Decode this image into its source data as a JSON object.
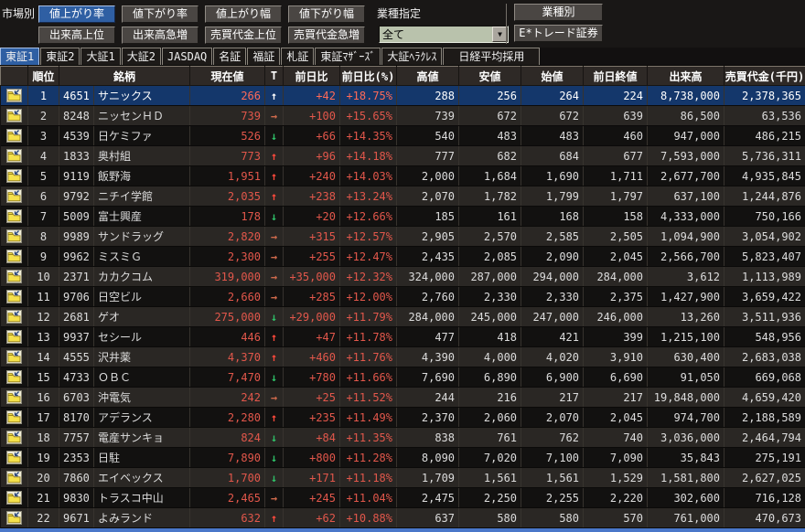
{
  "colors": {
    "selected_button_bg": "#2f5fa3",
    "selected_row_bg": "#14376b",
    "price_text": "#e2574b",
    "arrow_up": "#ff4a3c",
    "arrow_down": "#2fc269",
    "arrow_flat": "#cf6a4c",
    "dropdown_bg": "#b9c2ac",
    "bottom_line": "#4a77c9"
  },
  "toolbar": {
    "market_label": "市場別",
    "industry_label": "業種指定",
    "row1_buttons": [
      {
        "label": "値上がり率",
        "selected": true
      },
      {
        "label": "値下がり率",
        "selected": false
      },
      {
        "label": "値上がり幅",
        "selected": false
      },
      {
        "label": "値下がり幅",
        "selected": false
      }
    ],
    "row2_buttons": [
      {
        "label": "出来高上位",
        "selected": false
      },
      {
        "label": "出来高急増",
        "selected": false
      },
      {
        "label": "売買代金上位",
        "selected": false
      },
      {
        "label": "売買代金急増",
        "selected": false
      }
    ],
    "industry_select_value": "全て",
    "dropdown_arrow": "▼",
    "industry_detail_button": "業種別",
    "broker_button": "E*トレード証券"
  },
  "tabs": [
    {
      "label": "東証1",
      "selected": true
    },
    {
      "label": "東証2",
      "selected": false
    },
    {
      "label": "大証1",
      "selected": false
    },
    {
      "label": "大証2",
      "selected": false
    },
    {
      "label": "JASDAQ",
      "selected": false
    },
    {
      "label": "名証",
      "selected": false
    },
    {
      "label": "福証",
      "selected": false
    },
    {
      "label": "札証",
      "selected": false
    },
    {
      "label": "東証ﾏｻﾞｰｽﾞ",
      "selected": false
    },
    {
      "label": "大証ﾍﾗｸﾚｽ",
      "selected": false
    },
    {
      "label": "日経平均採用",
      "selected": false
    }
  ],
  "table": {
    "columns": [
      "",
      "順位",
      "銘柄",
      "現在値",
      "T",
      "前日比",
      "前日比(%)",
      "高値",
      "安値",
      "始値",
      "前日終値",
      "出来高",
      "売買代金(千円)"
    ],
    "trend_glyphs": {
      "up": "↑",
      "down": "↓",
      "flat": "→"
    },
    "rows": [
      {
        "rank": 1,
        "code": "4651",
        "name": "サニックス",
        "price": "266",
        "trend": "up",
        "change": "+42",
        "pct": "+18.75%",
        "high": "288",
        "low": "256",
        "open": "264",
        "prev_close": "224",
        "volume": "8,738,000",
        "value": "2,378,365",
        "selected": true
      },
      {
        "rank": 2,
        "code": "8248",
        "name": "ニッセンＨＤ",
        "price": "739",
        "trend": "flat",
        "change": "+100",
        "pct": "+15.65%",
        "high": "739",
        "low": "672",
        "open": "672",
        "prev_close": "639",
        "volume": "86,500",
        "value": "63,536",
        "selected": false
      },
      {
        "rank": 3,
        "code": "4539",
        "name": "日ケミファ",
        "price": "526",
        "trend": "down",
        "change": "+66",
        "pct": "+14.35%",
        "high": "540",
        "low": "483",
        "open": "483",
        "prev_close": "460",
        "volume": "947,000",
        "value": "486,215",
        "selected": false
      },
      {
        "rank": 4,
        "code": "1833",
        "name": "奥村組",
        "price": "773",
        "trend": "up",
        "change": "+96",
        "pct": "+14.18%",
        "high": "777",
        "low": "682",
        "open": "684",
        "prev_close": "677",
        "volume": "7,593,000",
        "value": "5,736,311",
        "selected": false
      },
      {
        "rank": 5,
        "code": "9119",
        "name": "飯野海",
        "price": "1,951",
        "trend": "up",
        "change": "+240",
        "pct": "+14.03%",
        "high": "2,000",
        "low": "1,684",
        "open": "1,690",
        "prev_close": "1,711",
        "volume": "2,677,700",
        "value": "4,935,845",
        "selected": false
      },
      {
        "rank": 6,
        "code": "9792",
        "name": "ニチイ学館",
        "price": "2,035",
        "trend": "up",
        "change": "+238",
        "pct": "+13.24%",
        "high": "2,070",
        "low": "1,782",
        "open": "1,799",
        "prev_close": "1,797",
        "volume": "637,100",
        "value": "1,244,876",
        "selected": false
      },
      {
        "rank": 7,
        "code": "5009",
        "name": "富士興産",
        "price": "178",
        "trend": "down",
        "change": "+20",
        "pct": "+12.66%",
        "high": "185",
        "low": "161",
        "open": "168",
        "prev_close": "158",
        "volume": "4,333,000",
        "value": "750,166",
        "selected": false
      },
      {
        "rank": 8,
        "code": "9989",
        "name": "サンドラッグ",
        "price": "2,820",
        "trend": "flat",
        "change": "+315",
        "pct": "+12.57%",
        "high": "2,905",
        "low": "2,570",
        "open": "2,585",
        "prev_close": "2,505",
        "volume": "1,094,900",
        "value": "3,054,902",
        "selected": false
      },
      {
        "rank": 9,
        "code": "9962",
        "name": "ミスミＧ",
        "price": "2,300",
        "trend": "flat",
        "change": "+255",
        "pct": "+12.47%",
        "high": "2,435",
        "low": "2,085",
        "open": "2,090",
        "prev_close": "2,045",
        "volume": "2,566,700",
        "value": "5,823,407",
        "selected": false
      },
      {
        "rank": 10,
        "code": "2371",
        "name": "カカクコム",
        "price": "319,000",
        "trend": "flat",
        "change": "+35,000",
        "pct": "+12.32%",
        "high": "324,000",
        "low": "287,000",
        "open": "294,000",
        "prev_close": "284,000",
        "volume": "3,612",
        "value": "1,113,989",
        "selected": false
      },
      {
        "rank": 11,
        "code": "9706",
        "name": "日空ビル",
        "price": "2,660",
        "trend": "flat",
        "change": "+285",
        "pct": "+12.00%",
        "high": "2,760",
        "low": "2,330",
        "open": "2,330",
        "prev_close": "2,375",
        "volume": "1,427,900",
        "value": "3,659,422",
        "selected": false
      },
      {
        "rank": 12,
        "code": "2681",
        "name": "ゲオ",
        "price": "275,000",
        "trend": "down",
        "change": "+29,000",
        "pct": "+11.79%",
        "high": "284,000",
        "low": "245,000",
        "open": "247,000",
        "prev_close": "246,000",
        "volume": "13,260",
        "value": "3,511,936",
        "selected": false
      },
      {
        "rank": 13,
        "code": "9937",
        "name": "セシール",
        "price": "446",
        "trend": "up",
        "change": "+47",
        "pct": "+11.78%",
        "high": "477",
        "low": "418",
        "open": "421",
        "prev_close": "399",
        "volume": "1,215,100",
        "value": "548,956",
        "selected": false
      },
      {
        "rank": 14,
        "code": "4555",
        "name": "沢井薬",
        "price": "4,370",
        "trend": "up",
        "change": "+460",
        "pct": "+11.76%",
        "high": "4,390",
        "low": "4,000",
        "open": "4,020",
        "prev_close": "3,910",
        "volume": "630,400",
        "value": "2,683,038",
        "selected": false
      },
      {
        "rank": 15,
        "code": "4733",
        "name": "ＯＢＣ",
        "price": "7,470",
        "trend": "down",
        "change": "+780",
        "pct": "+11.66%",
        "high": "7,690",
        "low": "6,890",
        "open": "6,900",
        "prev_close": "6,690",
        "volume": "91,050",
        "value": "669,068",
        "selected": false
      },
      {
        "rank": 16,
        "code": "6703",
        "name": "沖電気",
        "price": "242",
        "trend": "flat",
        "change": "+25",
        "pct": "+11.52%",
        "high": "244",
        "low": "216",
        "open": "217",
        "prev_close": "217",
        "volume": "19,848,000",
        "value": "4,659,420",
        "selected": false
      },
      {
        "rank": 17,
        "code": "8170",
        "name": "アデランス",
        "price": "2,280",
        "trend": "up",
        "change": "+235",
        "pct": "+11.49%",
        "high": "2,370",
        "low": "2,060",
        "open": "2,070",
        "prev_close": "2,045",
        "volume": "974,700",
        "value": "2,188,589",
        "selected": false
      },
      {
        "rank": 18,
        "code": "7757",
        "name": "電産サンキョ",
        "price": "824",
        "trend": "down",
        "change": "+84",
        "pct": "+11.35%",
        "high": "838",
        "low": "761",
        "open": "762",
        "prev_close": "740",
        "volume": "3,036,000",
        "value": "2,464,794",
        "selected": false
      },
      {
        "rank": 19,
        "code": "2353",
        "name": "日駐",
        "price": "7,890",
        "trend": "down",
        "change": "+800",
        "pct": "+11.28%",
        "high": "8,090",
        "low": "7,020",
        "open": "7,100",
        "prev_close": "7,090",
        "volume": "35,843",
        "value": "275,191",
        "selected": false
      },
      {
        "rank": 20,
        "code": "7860",
        "name": "エイベックス",
        "price": "1,700",
        "trend": "down",
        "change": "+171",
        "pct": "+11.18%",
        "high": "1,709",
        "low": "1,561",
        "open": "1,561",
        "prev_close": "1,529",
        "volume": "1,581,800",
        "value": "2,627,025",
        "selected": false
      },
      {
        "rank": 21,
        "code": "9830",
        "name": "トラスコ中山",
        "price": "2,465",
        "trend": "flat",
        "change": "+245",
        "pct": "+11.04%",
        "high": "2,475",
        "low": "2,250",
        "open": "2,255",
        "prev_close": "2,220",
        "volume": "302,600",
        "value": "716,128",
        "selected": false
      },
      {
        "rank": 22,
        "code": "9671",
        "name": "よみランド",
        "price": "632",
        "trend": "up",
        "change": "+62",
        "pct": "+10.88%",
        "high": "637",
        "low": "580",
        "open": "580",
        "prev_close": "570",
        "volume": "761,000",
        "value": "470,673",
        "selected": false
      }
    ]
  }
}
